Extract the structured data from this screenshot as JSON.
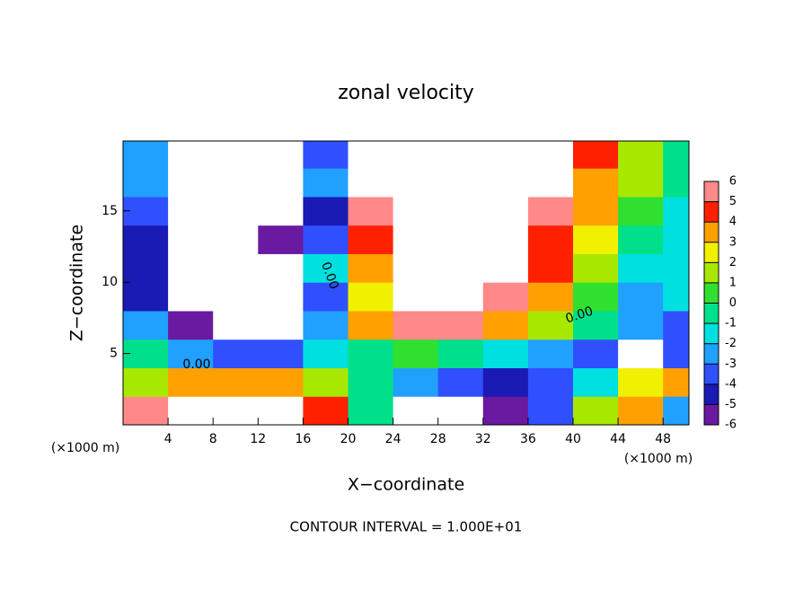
{
  "chart_data": {
    "type": "contour",
    "title": "zonal velocity",
    "x_label": "X−coordinate",
    "y_label": "Z−coordinate",
    "x_unit": "(×1000 m)",
    "y_unit": "(×1000 m)",
    "footer": "CONTOUR INTERVAL = 1.000E+01",
    "contour_labels": [
      "0.00",
      "0.00",
      "0.00"
    ],
    "x": [
      2,
      6,
      10,
      14,
      18,
      22,
      26,
      30,
      34,
      38,
      42,
      46,
      50
    ],
    "y": [
      1,
      3,
      5,
      7,
      9,
      11,
      13,
      15,
      17,
      19
    ],
    "z": [
      [
        6,
        8,
        8,
        8,
        5,
        0,
        -8,
        -8,
        -6,
        -3,
        2,
        4,
        -2
      ],
      [
        2,
        4,
        4,
        4,
        2,
        0,
        -2,
        -3,
        -4,
        -3,
        -1,
        3,
        4
      ],
      [
        0,
        -2,
        -3,
        -3,
        -1,
        0,
        1,
        0,
        -1,
        -2,
        -3,
        -8,
        -3
      ],
      [
        -2,
        -6,
        -8,
        -8,
        -2,
        4,
        6,
        6,
        4,
        2,
        0,
        -2,
        -3
      ],
      [
        -4,
        -8,
        -8,
        -8,
        -3,
        3,
        8,
        8,
        6,
        4,
        1,
        -2,
        -1
      ],
      [
        -4,
        -8,
        -8,
        -7,
        -1,
        4,
        8,
        8,
        8,
        5,
        2,
        -1,
        -1
      ],
      [
        -4,
        -8,
        -8,
        -5,
        -3,
        5,
        8,
        8,
        8,
        5,
        3,
        0,
        -1
      ],
      [
        -3,
        -8,
        -8,
        -8,
        -4,
        6,
        8,
        8,
        8,
        6,
        4,
        1,
        -1
      ],
      [
        -2,
        -8,
        -8,
        -8,
        -2,
        8,
        8,
        8,
        8,
        8,
        4,
        2,
        0
      ],
      [
        -2,
        -8,
        -8,
        -8,
        -3,
        8,
        8,
        8,
        8,
        8,
        5,
        2,
        0
      ]
    ],
    "xlim": [
      0,
      50.3
    ],
    "ylim": [
      0,
      19.9
    ],
    "xticks": [
      4,
      8,
      12,
      16,
      20,
      24,
      28,
      32,
      36,
      40,
      44,
      48
    ],
    "yticks": [
      5,
      10,
      15
    ],
    "colorbar_ticks": [
      -6,
      -5,
      -4,
      -3,
      -2,
      -1,
      0,
      1,
      2,
      3,
      4,
      5,
      6
    ],
    "colorbar_colors": [
      "#6a1aa0",
      "#1a1ab4",
      "#3050ff",
      "#20a0ff",
      "#00e0e0",
      "#00e08a",
      "#30e030",
      "#a8e800",
      "#f0f000",
      "#ffa000",
      "#ff2000",
      "#ff8888"
    ]
  }
}
